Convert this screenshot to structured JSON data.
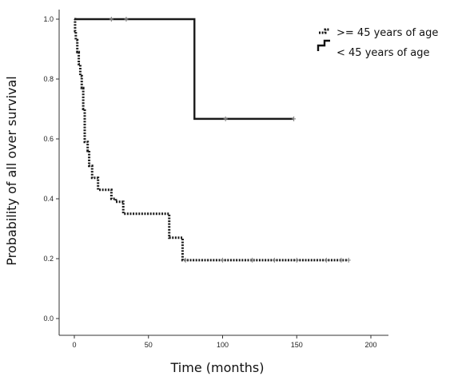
{
  "chart_data": {
    "type": "line",
    "xlabel": "Time (months)",
    "ylabel": "Probability of all over survival",
    "xlim": [
      0,
      200
    ],
    "ylim": [
      0,
      1.0
    ],
    "xticks": [
      0,
      50,
      100,
      150,
      200
    ],
    "yticks": [
      0.0,
      0.2,
      0.4,
      0.6,
      0.8,
      1.0
    ],
    "xtick_labels": [
      "0",
      "50",
      "100",
      "150",
      "200"
    ],
    "ytick_labels": [
      "0.0",
      "0.2",
      "0.4",
      "0.6",
      "0.8",
      "1.0"
    ],
    "grid": false,
    "legend_position": "top-right",
    "series": [
      {
        "name": ">= 45 years of age",
        "style": "dotted",
        "color": "#1a1a1a",
        "steps": [
          [
            0,
            1.0
          ],
          [
            0.5,
            0.96
          ],
          [
            1,
            0.93
          ],
          [
            2,
            0.89
          ],
          [
            3,
            0.85
          ],
          [
            4,
            0.81
          ],
          [
            5,
            0.77
          ],
          [
            6,
            0.7
          ],
          [
            7,
            0.59
          ],
          [
            9,
            0.56
          ],
          [
            10,
            0.51
          ],
          [
            12,
            0.47
          ],
          [
            16,
            0.43
          ],
          [
            25,
            0.4
          ],
          [
            28,
            0.39
          ],
          [
            33,
            0.35
          ],
          [
            64,
            0.27
          ],
          [
            73,
            0.195
          ],
          [
            185,
            0.195
          ]
        ],
        "censored": [
          [
            75,
            0.195
          ],
          [
            100,
            0.195
          ],
          [
            120,
            0.195
          ],
          [
            135,
            0.195
          ],
          [
            150,
            0.195
          ],
          [
            170,
            0.195
          ],
          [
            180,
            0.195
          ],
          [
            185,
            0.195
          ]
        ]
      },
      {
        "name": "< 45 years of age",
        "style": "solid",
        "color": "#1a1a1a",
        "steps": [
          [
            0,
            1.0
          ],
          [
            81,
            0.667
          ],
          [
            148,
            0.667
          ]
        ],
        "censored": [
          [
            25,
            1.0
          ],
          [
            35,
            1.0
          ],
          [
            102,
            0.667
          ],
          [
            148,
            0.667
          ]
        ]
      }
    ]
  }
}
